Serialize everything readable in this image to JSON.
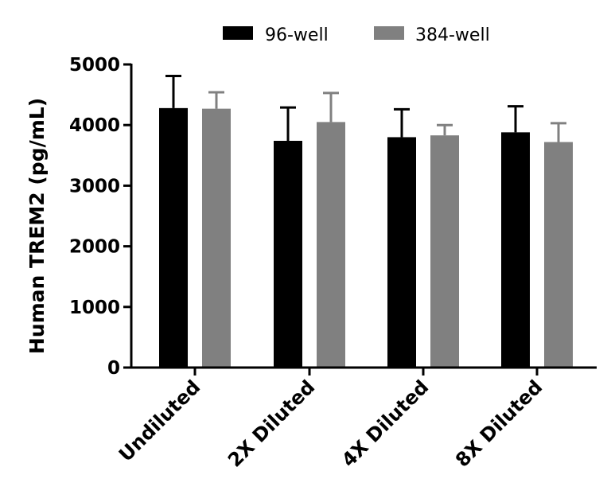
{
  "chart_data": {
    "type": "bar",
    "title": "",
    "xlabel": "",
    "ylabel": "Human TREM2 (pg/mL)",
    "ylim": [
      0,
      5000
    ],
    "yticks": [
      0,
      1000,
      2000,
      3000,
      4000,
      5000
    ],
    "yticks_labels": [
      "0",
      "1000",
      "2000",
      "3000",
      "4000",
      "5000"
    ],
    "categories": [
      "Undiluted",
      "2X Diluted",
      "4X Diluted",
      "8X Diluted"
    ],
    "series": [
      {
        "name": "96-well",
        "color": "#000000",
        "values": [
          4280,
          3740,
          3800,
          3880
        ],
        "errors": [
          530,
          550,
          460,
          430
        ]
      },
      {
        "name": "384-well",
        "color": "#808080",
        "values": [
          4270,
          4050,
          3830,
          3720
        ],
        "errors": [
          270,
          480,
          170,
          310
        ]
      }
    ],
    "legend_position": "top-center",
    "grid": false
  }
}
